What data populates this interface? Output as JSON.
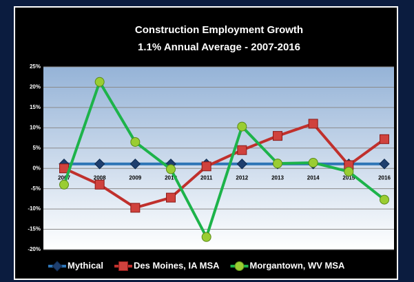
{
  "chart_data": {
    "type": "line",
    "title": "Construction Employment Growth",
    "subtitle": "1.1% Annual  Average - 2007-2016",
    "categories": [
      "2007",
      "2008",
      "2009",
      "2010",
      "2011",
      "2012",
      "2013",
      "2014",
      "2015",
      "2016"
    ],
    "series": [
      {
        "name": "Mythical",
        "color": "#2e75b6",
        "marker_color": "#1f3f6e",
        "marker": "diamond",
        "values": [
          1.1,
          1.1,
          1.1,
          1.1,
          1.1,
          1.1,
          1.1,
          1.1,
          1.1,
          1.1
        ]
      },
      {
        "name": "Des Moines, IA MSA",
        "color": "#c0302c",
        "marker_color": "#d0423d",
        "marker": "square",
        "values": [
          0,
          -4,
          -9.7,
          -7.2,
          0.5,
          4.5,
          8,
          11,
          0.8,
          7.2
        ]
      },
      {
        "name": "Morgantown, WV MSA",
        "color": "#1db34a",
        "marker_color": "#9acd32",
        "marker": "circle",
        "values": [
          -4,
          21.3,
          6.5,
          -0.2,
          -16.9,
          10.3,
          1.2,
          1.4,
          -0.8,
          -7.7
        ]
      }
    ],
    "ylim": [
      -20,
      25
    ],
    "yticks": [
      {
        "value": -20,
        "label": "-20%"
      },
      {
        "value": -15,
        "label": "-15%"
      },
      {
        "value": -10,
        "label": "-10%"
      },
      {
        "value": -5,
        "label": "-5%"
      },
      {
        "value": 0,
        "label": "0%"
      },
      {
        "value": 5,
        "label": "5%"
      },
      {
        "value": 10,
        "label": "10%"
      },
      {
        "value": 15,
        "label": "15%"
      },
      {
        "value": 20,
        "label": "20%"
      },
      {
        "value": 25,
        "label": "25%"
      }
    ],
    "grid": true,
    "legend": "bottom"
  }
}
